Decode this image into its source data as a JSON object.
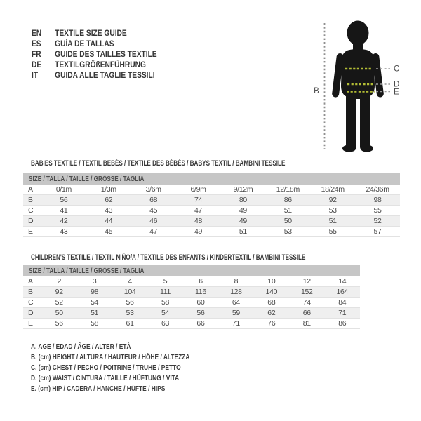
{
  "languages": {
    "items": [
      {
        "code": "EN",
        "label": "TEXTILE SIZE GUIDE"
      },
      {
        "code": "ES",
        "label": "GUÍA DE TALLAS"
      },
      {
        "code": "FR",
        "label": "GUIDE DES TAILLES TEXTILE"
      },
      {
        "code": "DE",
        "label": "TEXTILGRÖßENFÜHRUNG"
      },
      {
        "code": "IT",
        "label": "GUIDA ALLE TAGLIE TESSILI"
      }
    ]
  },
  "figure": {
    "labels": {
      "height": "B",
      "chest": "C",
      "waist": "D",
      "hip": "E"
    },
    "colors": {
      "silhouette": "#161616",
      "measure_line": "#b2bc35",
      "extension_line": "#989898",
      "label_text": "#4a4a4a"
    }
  },
  "babies": {
    "title": "BABIES TEXTILE / TEXTIL BEBÉS / TEXTILE DES BÉBÉS / BABYS TEXTIL / BAMBINI TESSILE",
    "size_header": "SIZE / TALLA / TAILLE / GRÖSSE / TAGLIA",
    "rows": [
      {
        "label": "A",
        "values": [
          "0/1m",
          "1/3m",
          "3/6m",
          "6/9m",
          "9/12m",
          "12/18m",
          "18/24m",
          "24/36m"
        ]
      },
      {
        "label": "B",
        "values": [
          "56",
          "62",
          "68",
          "74",
          "80",
          "86",
          "92",
          "98"
        ]
      },
      {
        "label": "C",
        "values": [
          "41",
          "43",
          "45",
          "47",
          "49",
          "51",
          "53",
          "55"
        ]
      },
      {
        "label": "D",
        "values": [
          "42",
          "44",
          "46",
          "48",
          "49",
          "50",
          "51",
          "52"
        ]
      },
      {
        "label": "E",
        "values": [
          "43",
          "45",
          "47",
          "49",
          "51",
          "53",
          "55",
          "57"
        ]
      }
    ]
  },
  "children": {
    "title": "CHILDREN'S TEXTILE / TEXTIL NIÑO/A / TEXTILE DES ENFANTS / KINDERTEXTIL / BAMBINI TESSILE",
    "size_header": "SIZE / TALLA / TAILLE / GRÖSSE / TAGLIA",
    "rows": [
      {
        "label": "A",
        "values": [
          "2",
          "3",
          "4",
          "5",
          "6",
          "8",
          "10",
          "12",
          "14"
        ]
      },
      {
        "label": "B",
        "values": [
          "92",
          "98",
          "104",
          "111",
          "116",
          "128",
          "140",
          "152",
          "164"
        ]
      },
      {
        "label": "C",
        "values": [
          "52",
          "54",
          "56",
          "58",
          "60",
          "64",
          "68",
          "74",
          "84"
        ]
      },
      {
        "label": "D",
        "values": [
          "50",
          "51",
          "53",
          "54",
          "56",
          "59",
          "62",
          "66",
          "71"
        ]
      },
      {
        "label": "E",
        "values": [
          "56",
          "58",
          "61",
          "63",
          "66",
          "71",
          "76",
          "81",
          "86"
        ]
      }
    ]
  },
  "legend": {
    "items": [
      "A. AGE / EDAD / ÂGE / ALTER / ETÀ",
      "B. (cm) HEIGHT / ALTURA / HAUTEUR / HÖHE / ALTEZZA",
      "C. (cm) CHEST / PECHO / POITRINE / TRUHE / PETTO",
      "D. (cm) WAIST / CINTURA / TAILLE / HÜFTUNG / VITA",
      "E. (cm) HIP / CADERA / HANCHE / HÜFTE / HIPS"
    ]
  },
  "ui_colors": {
    "table_header_bar": "#c6c6c6",
    "row_stripe": "#efefef",
    "row_border": "#e2e2e2",
    "text": "#3a3a3a"
  }
}
